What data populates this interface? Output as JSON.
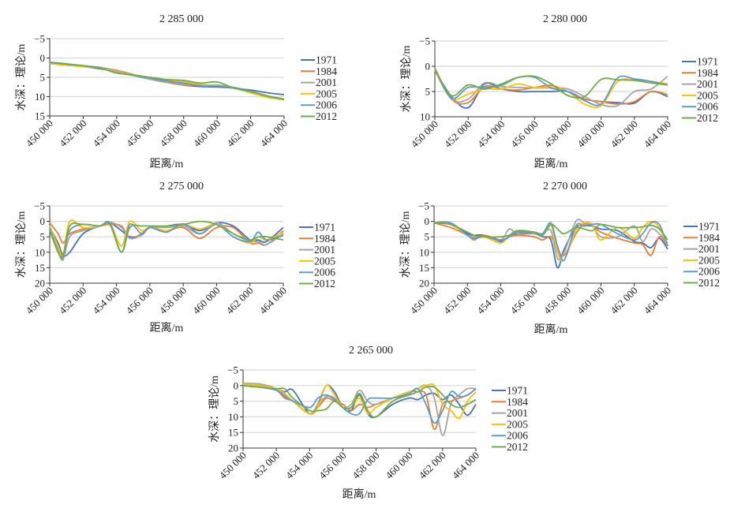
{
  "series_names": [
    "1971",
    "1984",
    "2001",
    "2005",
    "2006",
    "2012"
  ],
  "series_colors": [
    "#4472C4",
    "#ED7D31",
    "#A5A5A5",
    "#FFC000",
    "#5B9BD5",
    "#70AD47"
  ],
  "chart_data": [
    {
      "type": "line",
      "title": "2 285 000",
      "xlabel": "距离/m",
      "ylabel": "水深：理论/m",
      "xlim": [
        450000,
        464000
      ],
      "ylim": [
        -5,
        15
      ],
      "y_inverted": true,
      "grid": true,
      "legend": "right",
      "xticks": [
        "450 000",
        "452 000",
        "454 000",
        "456 000",
        "458 000",
        "460 000",
        "462 000",
        "464 000"
      ],
      "yticks": [
        "−5",
        "0",
        "5",
        "10",
        "15"
      ],
      "x": [
        450000,
        451000,
        452000,
        453000,
        454000,
        455000,
        456000,
        457000,
        458000,
        459000,
        460000,
        461000,
        462000,
        463000,
        464000
      ],
      "series": [
        {
          "name": "1971",
          "values": [
            1.5,
            1.8,
            2.2,
            2.8,
            3.5,
            4.5,
            5.5,
            6.3,
            7,
            7.4,
            7.5,
            7.8,
            8.3,
            9,
            9.5
          ]
        },
        {
          "name": "1984",
          "values": [
            1.3,
            1.7,
            2.1,
            2.5,
            3.2,
            4.3,
            5.5,
            6.3,
            7,
            7,
            7.2,
            7.7,
            8.6,
            9.8,
            10.7
          ]
        },
        {
          "name": "2001",
          "values": [
            1.3,
            1.6,
            2,
            2.4,
            3.3,
            4.4,
            5.5,
            6.2,
            6.8,
            7,
            7,
            7.6,
            8.6,
            9.8,
            10.7
          ]
        },
        {
          "name": "2005",
          "values": [
            1.5,
            1.9,
            2.2,
            2.6,
            3.6,
            4.5,
            5.2,
            5.8,
            6.2,
            6.8,
            7.2,
            7.8,
            9,
            10.2,
            10.8
          ]
        },
        {
          "name": "2006",
          "values": [
            1.2,
            1.6,
            2,
            2.6,
            3.8,
            4.5,
            5.2,
            6,
            6.5,
            7.2,
            7.3,
            7.7,
            8.6,
            9.9,
            10.7
          ]
        },
        {
          "name": "2012",
          "values": [
            1.1,
            1.5,
            2,
            2.6,
            3.9,
            4.4,
            5,
            5.6,
            5.8,
            6.5,
            6.2,
            7.8,
            8.7,
            9.8,
            10.6
          ]
        }
      ]
    },
    {
      "type": "line",
      "title": "2 280 000",
      "xlabel": "距离/m",
      "ylabel": "水深：理论/m",
      "xlim": [
        450000,
        464000
      ],
      "ylim": [
        -5,
        10
      ],
      "y_inverted": true,
      "grid": true,
      "legend": "right",
      "xticks": [
        "450 000",
        "452 000",
        "454 000",
        "456 000",
        "458 000",
        "460 000",
        "462 000",
        "464 000"
      ],
      "yticks": [
        "−5",
        "0",
        "5",
        "10"
      ],
      "x": [
        450000,
        451000,
        452000,
        453000,
        454000,
        455000,
        456000,
        457000,
        458000,
        459000,
        460000,
        461000,
        462000,
        463000,
        464000
      ],
      "series": [
        {
          "name": "1971",
          "values": [
            0.8,
            6,
            8.2,
            3.5,
            4.5,
            5,
            5,
            5,
            5,
            6.5,
            7,
            7.2,
            7.3,
            5,
            6
          ]
        },
        {
          "name": "1984",
          "values": [
            0.3,
            6.5,
            7.2,
            4,
            4.5,
            4.7,
            4.2,
            3.8,
            5,
            6.5,
            7,
            7.5,
            7,
            5,
            5.6
          ]
        },
        {
          "name": "2001",
          "values": [
            0.5,
            6.5,
            6.5,
            3.3,
            4,
            4.2,
            4.3,
            4.3,
            4.5,
            6,
            7.6,
            7.8,
            5,
            4.5,
            2
          ]
        },
        {
          "name": "2005",
          "values": [
            0.8,
            6.3,
            5.5,
            4.5,
            4.5,
            3.5,
            4.2,
            4.2,
            5,
            7.5,
            7.8,
            3,
            2.7,
            3,
            3.5
          ]
        },
        {
          "name": "2006",
          "values": [
            0.7,
            6.3,
            4.2,
            4.2,
            3.8,
            2.2,
            2.2,
            4.3,
            5,
            6.8,
            7.5,
            2.3,
            2.5,
            3,
            3.7
          ]
        },
        {
          "name": "2012",
          "values": [
            0.8,
            5.8,
            3.7,
            4.5,
            3.5,
            2.2,
            2,
            3.5,
            5.8,
            6,
            2.6,
            2.7,
            2.8,
            3.3,
            3.7
          ]
        }
      ]
    },
    {
      "type": "line",
      "title": "2 275 000",
      "xlabel": "距离/m",
      "ylabel": "水深：理论/m",
      "xlim": [
        450000,
        464000
      ],
      "ylim": [
        -5,
        20
      ],
      "y_inverted": true,
      "grid": true,
      "legend": "right",
      "xticks": [
        "450 000",
        "452 000",
        "454 000",
        "456 000",
        "458 000",
        "460 000",
        "462 000",
        "464 000"
      ],
      "yticks": [
        "−5",
        "0",
        "5",
        "10",
        "15",
        "20"
      ],
      "x": [
        450000,
        450500,
        450800,
        451200,
        452000,
        453000,
        453600,
        454300,
        454800,
        455500,
        456000,
        457000,
        458000,
        459000,
        460000,
        461000,
        462000,
        462500,
        463000,
        464000
      ],
      "series": [
        {
          "name": "1971",
          "values": [
            2,
            7,
            11,
            10,
            4,
            1.5,
            0.5,
            3,
            5,
            4.5,
            2,
            1.5,
            1,
            3,
            0.5,
            1.5,
            6,
            6,
            6.5,
            2
          ]
        },
        {
          "name": "1984",
          "values": [
            0.5,
            4,
            7,
            4,
            2.5,
            1.5,
            1,
            1.5,
            5.5,
            4,
            2,
            3,
            2,
            5.5,
            2,
            2,
            7,
            7,
            7.5,
            3
          ]
        },
        {
          "name": "2001",
          "values": [
            2,
            9,
            12.5,
            5,
            3,
            1.5,
            0.3,
            2,
            5.5,
            4.5,
            2,
            2,
            1.5,
            4,
            0.5,
            4,
            6.5,
            6.5,
            7.5,
            4
          ]
        },
        {
          "name": "2005",
          "values": [
            1.5,
            8,
            11,
            0,
            2,
            1.5,
            0.5,
            8,
            0,
            3,
            2,
            3,
            1,
            2.5,
            1,
            5,
            7,
            5,
            6,
            3.5
          ]
        },
        {
          "name": "2006",
          "values": [
            2,
            10,
            11,
            3,
            1,
            1.5,
            0.5,
            10,
            1,
            4,
            2,
            3.5,
            0.8,
            4,
            1,
            5,
            6.5,
            3.5,
            6,
            4.5
          ]
        },
        {
          "name": "2012",
          "values": [
            3,
            10,
            11.5,
            1.5,
            1,
            1.5,
            1,
            10,
            2,
            1.5,
            1.5,
            1.5,
            1,
            0,
            1,
            4,
            6,
            5,
            5,
            6
          ]
        }
      ]
    },
    {
      "type": "line",
      "title": "2 270 000",
      "xlabel": "距离/m",
      "ylabel": "水深：理论/m",
      "xlim": [
        450000,
        464000
      ],
      "ylim": [
        -5,
        20
      ],
      "y_inverted": true,
      "grid": true,
      "legend": "right",
      "xticks": [
        "450 000",
        "452 000",
        "454 000",
        "456 000",
        "458 000",
        "460 000",
        "462 000",
        "464 000"
      ],
      "yticks": [
        "−5",
        "0",
        "5",
        "10",
        "15",
        "20"
      ],
      "x": [
        450000,
        451000,
        452000,
        452400,
        453000,
        454000,
        454500,
        455000,
        456000,
        456500,
        457000,
        457400,
        457800,
        458500,
        459000,
        459500,
        460000,
        461000,
        462000,
        462500,
        463000,
        463500,
        464000
      ],
      "series": [
        {
          "name": "1971",
          "values": [
            0.5,
            1,
            4,
            4.5,
            4.5,
            6.5,
            5,
            4,
            4,
            5,
            6,
            15,
            9,
            2,
            1.5,
            1.5,
            2.5,
            3,
            6.5,
            7,
            8.5,
            5.5,
            9
          ]
        },
        {
          "name": "1984",
          "values": [
            0.5,
            2,
            4.5,
            6,
            4.5,
            6,
            5,
            4.5,
            5,
            6,
            5,
            9,
            11,
            4,
            1,
            1.5,
            3.5,
            5.5,
            7,
            7.5,
            11,
            5,
            8
          ]
        },
        {
          "name": "2001",
          "values": [
            0.5,
            0.5,
            4.5,
            5,
            5,
            6,
            2.5,
            4,
            4,
            4,
            3,
            12,
            10,
            0,
            0.5,
            1.5,
            5,
            5,
            1.5,
            6.5,
            2.5,
            4,
            7
          ]
        },
        {
          "name": "2005",
          "values": [
            0.5,
            1,
            4.5,
            5.5,
            5,
            7,
            4.5,
            3.5,
            3.5,
            4,
            1,
            10,
            12.5,
            3,
            0.5,
            1,
            6,
            2,
            5.5,
            2,
            0,
            2,
            8
          ]
        },
        {
          "name": "2006",
          "values": [
            0.5,
            0.5,
            4.5,
            5.5,
            5,
            6,
            5,
            3.5,
            3.5,
            4,
            0.5,
            8,
            12.5,
            1.5,
            1.5,
            1,
            1,
            4,
            6,
            4,
            0.5,
            1,
            8
          ]
        },
        {
          "name": "2012",
          "values": [
            0.5,
            1,
            3.5,
            4.5,
            5,
            5,
            4.5,
            3,
            3.5,
            4.5,
            1,
            2.5,
            4,
            2,
            2.5,
            3,
            1,
            2,
            2,
            1.8,
            1.3,
            2.5,
            6
          ]
        }
      ]
    },
    {
      "type": "line",
      "title": "2 265 000",
      "xlabel": "距离/m",
      "ylabel": "水深：理论/m",
      "xlim": [
        450000,
        464000
      ],
      "ylim": [
        -5,
        20
      ],
      "y_inverted": true,
      "grid": true,
      "legend": "right",
      "xticks": [
        "450 000",
        "452 000",
        "454 000",
        "456 000",
        "458 000",
        "460 000",
        "462 000",
        "464 000"
      ],
      "yticks": [
        "−5",
        "0",
        "5",
        "10",
        "15",
        "20"
      ],
      "x": [
        450000,
        451000,
        452000,
        452500,
        453000,
        454000,
        454500,
        455000,
        455500,
        456000,
        456500,
        457000,
        457500,
        458000,
        459000,
        460000,
        460500,
        461000,
        461500,
        462000,
        462500,
        463000,
        463500,
        464000
      ],
      "series": [
        {
          "name": "1971",
          "values": [
            0,
            0.5,
            1,
            2,
            1.5,
            9,
            6,
            0,
            2,
            7,
            8,
            3,
            9,
            10,
            6,
            4,
            4.5,
            3,
            2.5,
            4.5,
            3,
            6,
            9.5,
            6
          ]
        },
        {
          "name": "1984",
          "values": [
            -0.5,
            0,
            1.5,
            4,
            5,
            9,
            7,
            4,
            5,
            6,
            8,
            6,
            7,
            6,
            4,
            2,
            2,
            3,
            14,
            6,
            5,
            4,
            3,
            1
          ]
        },
        {
          "name": "2001",
          "values": [
            -0.7,
            -0.5,
            1,
            3,
            5,
            9,
            6,
            3.5,
            4,
            7,
            6,
            1.5,
            5,
            6,
            4,
            2,
            1,
            0,
            4,
            16,
            6,
            3,
            1,
            1
          ]
        },
        {
          "name": "2005",
          "values": [
            -0.5,
            0,
            1,
            2.5,
            5,
            9,
            7,
            0,
            3,
            7,
            7,
            4,
            9,
            7,
            4,
            2,
            1,
            0,
            0,
            6,
            8,
            10.5,
            5,
            2
          ]
        },
        {
          "name": "2006",
          "values": [
            0,
            0.5,
            1.5,
            3.5,
            5,
            7,
            4,
            3,
            4.5,
            7,
            9,
            9,
            4.5,
            4,
            4,
            2.5,
            1,
            6,
            12,
            8,
            2,
            3.5,
            3,
            1
          ]
        },
        {
          "name": "2012",
          "values": [
            0,
            0.5,
            1,
            1,
            4,
            8,
            8,
            7.5,
            5,
            7,
            7,
            2.5,
            8,
            10,
            5,
            3,
            2,
            0.5,
            0.5,
            3,
            6,
            7,
            6,
            4.5
          ]
        }
      ]
    }
  ]
}
